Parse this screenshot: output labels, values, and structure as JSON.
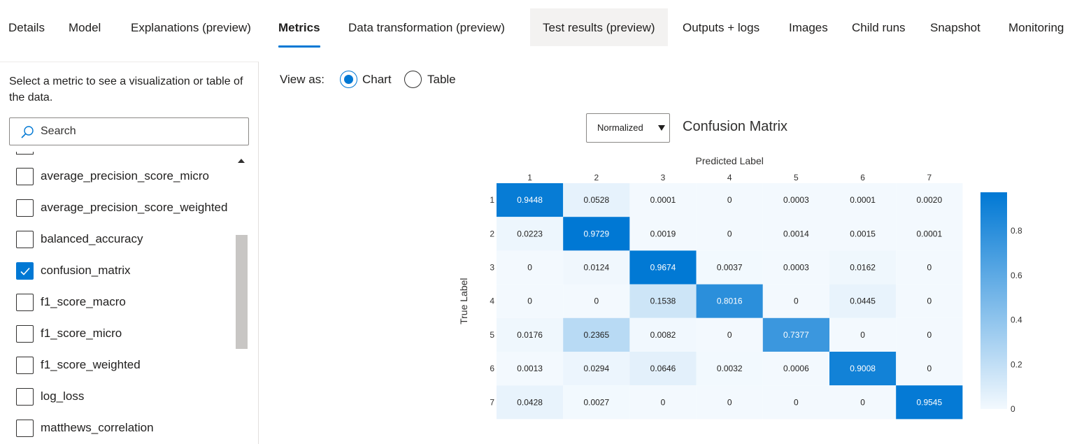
{
  "tabs": [
    {
      "label": "Details",
      "active": false
    },
    {
      "label": "Model",
      "active": false
    },
    {
      "label": "Explanations (preview)",
      "active": false
    },
    {
      "label": "Metrics",
      "active": true
    },
    {
      "label": "Data transformation (preview)",
      "active": false
    },
    {
      "label": "Test results (preview)",
      "active": false,
      "hover": true
    },
    {
      "label": "Outputs + logs",
      "active": false
    },
    {
      "label": "Images",
      "active": false
    },
    {
      "label": "Child runs",
      "active": false
    },
    {
      "label": "Snapshot",
      "active": false
    },
    {
      "label": "Monitoring",
      "active": false
    }
  ],
  "sidebar": {
    "hint": "Select a metric to see a visualization or table of the data.",
    "search_placeholder": "Search",
    "metrics": [
      {
        "label": "average_precision_score_micro",
        "checked": false
      },
      {
        "label": "average_precision_score_weighted",
        "checked": false
      },
      {
        "label": "balanced_accuracy",
        "checked": false
      },
      {
        "label": "confusion_matrix",
        "checked": true
      },
      {
        "label": "f1_score_macro",
        "checked": false
      },
      {
        "label": "f1_score_micro",
        "checked": false
      },
      {
        "label": "f1_score_weighted",
        "checked": false
      },
      {
        "label": "log_loss",
        "checked": false
      },
      {
        "label": "matthews_correlation",
        "checked": false
      }
    ]
  },
  "view_as": {
    "label": "View as:",
    "options": [
      "Chart",
      "Table"
    ],
    "selected": "Chart"
  },
  "dropdown": {
    "value": "Normalized"
  },
  "chart_title": "Confusion Matrix",
  "colors": {
    "accent": "#0078d4",
    "cell_low": "#f3f9fe",
    "cell_high": "#0078d4"
  },
  "chart_data": {
    "type": "heatmap",
    "title": "Confusion Matrix",
    "xlabel": "Predicted Label",
    "ylabel": "True Label",
    "x_categories": [
      "1",
      "2",
      "3",
      "4",
      "5",
      "6",
      "7"
    ],
    "y_categories": [
      "1",
      "2",
      "3",
      "4",
      "5",
      "6",
      "7"
    ],
    "values": [
      [
        "0.9448",
        "0.0528",
        "0.0001",
        "0",
        "0.0003",
        "0.0001",
        "0.0020"
      ],
      [
        "0.0223",
        "0.9729",
        "0.0019",
        "0",
        "0.0014",
        "0.0015",
        "0.0001"
      ],
      [
        "0",
        "0.0124",
        "0.9674",
        "0.0037",
        "0.0003",
        "0.0162",
        "0"
      ],
      [
        "0",
        "0",
        "0.1538",
        "0.8016",
        "0",
        "0.0445",
        "0"
      ],
      [
        "0.0176",
        "0.2365",
        "0.0082",
        "0",
        "0.7377",
        "0",
        "0"
      ],
      [
        "0.0013",
        "0.0294",
        "0.0646",
        "0.0032",
        "0.0006",
        "0.9008",
        "0"
      ],
      [
        "0.0428",
        "0.0027",
        "0",
        "0",
        "0",
        "0",
        "0.9545"
      ]
    ],
    "colorbar": {
      "ticks": [
        "0.8",
        "0.6",
        "0.4",
        "0.2",
        "0"
      ],
      "range": [
        0,
        0.9729
      ]
    }
  }
}
